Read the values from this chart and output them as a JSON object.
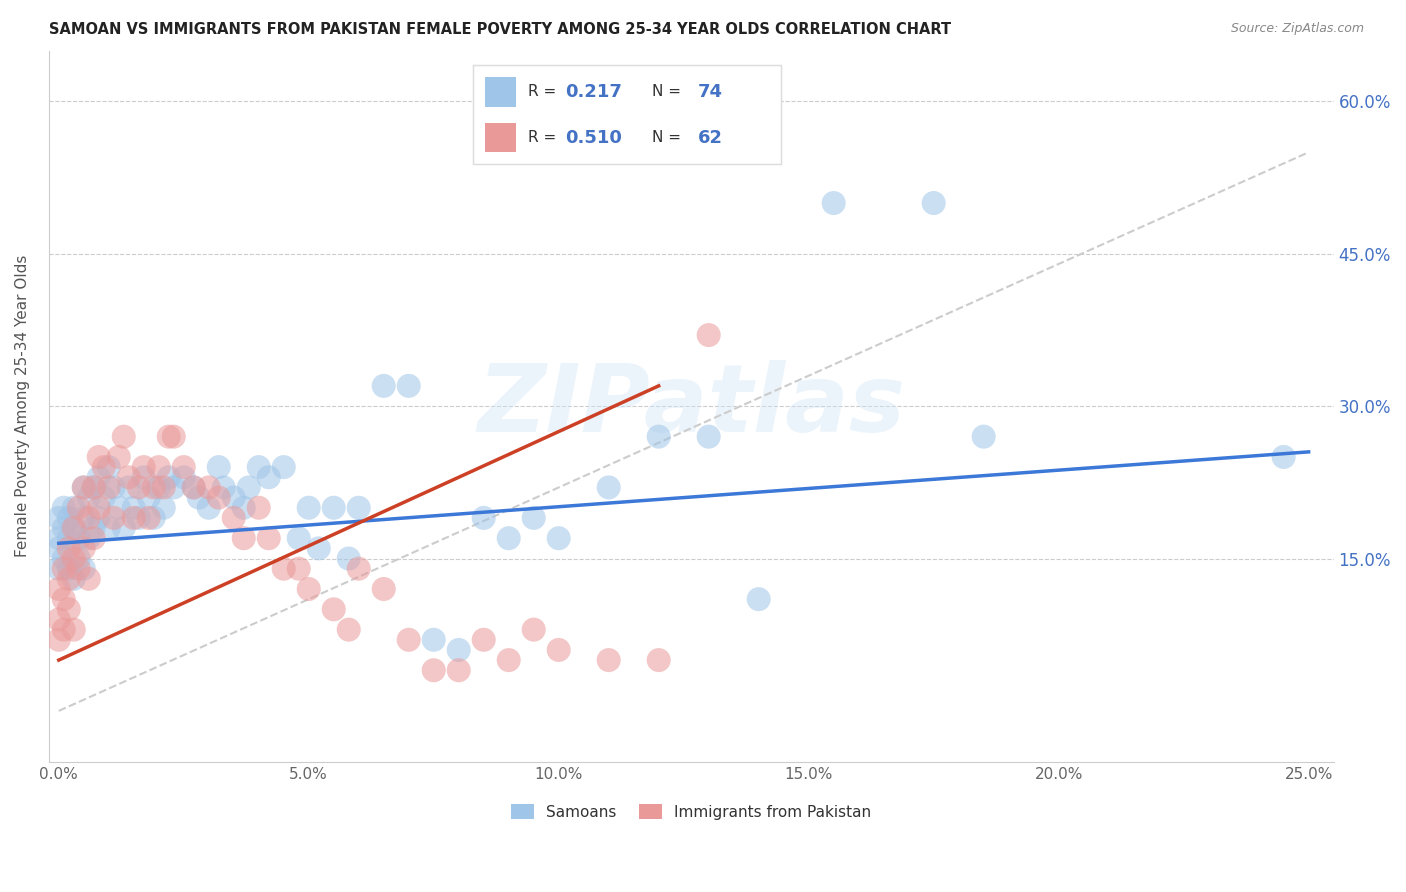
{
  "title": "SAMOAN VS IMMIGRANTS FROM PAKISTAN FEMALE POVERTY AMONG 25-34 YEAR OLDS CORRELATION CHART",
  "source": "Source: ZipAtlas.com",
  "xlabel_ticks": [
    "0.0%",
    "5.0%",
    "10.0%",
    "15.0%",
    "20.0%",
    "25.0%"
  ],
  "xlabel_vals": [
    0.0,
    0.05,
    0.1,
    0.15,
    0.2,
    0.25
  ],
  "ylabel_ticks": [
    "15.0%",
    "30.0%",
    "45.0%",
    "60.0%"
  ],
  "ylabel_vals": [
    0.15,
    0.3,
    0.45,
    0.6
  ],
  "ylabel_label": "Female Poverty Among 25-34 Year Olds",
  "xlim": [
    -0.002,
    0.255
  ],
  "ylim": [
    -0.05,
    0.65
  ],
  "R_blue": 0.217,
  "N_blue": 74,
  "R_pink": 0.51,
  "N_pink": 62,
  "color_blue": "#9fc5e8",
  "color_pink": "#ea9999",
  "color_blue_line": "#3c78d8",
  "color_pink_line": "#cc4125",
  "color_ref_line": "#cccccc",
  "legend1_label": "Samoans",
  "legend2_label": "Immigrants from Pakistan",
  "watermark": "ZIPatlas",
  "blue_line_x0": 0.0,
  "blue_line_y0": 0.165,
  "blue_line_x1": 0.25,
  "blue_line_y1": 0.255,
  "pink_line_x0": 0.0,
  "pink_line_y0": 0.05,
  "pink_line_x1": 0.12,
  "pink_line_y1": 0.32,
  "ref_line_x0": 0.0,
  "ref_line_y0": 0.0,
  "ref_line_x1": 0.25,
  "ref_line_y1": 0.55,
  "samoans_x": [
    0.0,
    0.0,
    0.0,
    0.0,
    0.001,
    0.001,
    0.001,
    0.002,
    0.002,
    0.002,
    0.003,
    0.003,
    0.003,
    0.004,
    0.004,
    0.005,
    0.005,
    0.005,
    0.006,
    0.006,
    0.007,
    0.007,
    0.008,
    0.008,
    0.009,
    0.01,
    0.01,
    0.011,
    0.012,
    0.013,
    0.014,
    0.015,
    0.016,
    0.017,
    0.018,
    0.019,
    0.02,
    0.021,
    0.022,
    0.023,
    0.025,
    0.027,
    0.028,
    0.03,
    0.032,
    0.033,
    0.035,
    0.037,
    0.038,
    0.04,
    0.042,
    0.045,
    0.048,
    0.05,
    0.052,
    0.055,
    0.058,
    0.06,
    0.065,
    0.07,
    0.075,
    0.08,
    0.085,
    0.09,
    0.095,
    0.1,
    0.11,
    0.12,
    0.13,
    0.14,
    0.155,
    0.175,
    0.185,
    0.245
  ],
  "samoans_y": [
    0.19,
    0.17,
    0.16,
    0.14,
    0.2,
    0.18,
    0.15,
    0.19,
    0.17,
    0.14,
    0.2,
    0.18,
    0.13,
    0.17,
    0.15,
    0.22,
    0.19,
    0.14,
    0.21,
    0.17,
    0.22,
    0.18,
    0.23,
    0.19,
    0.21,
    0.24,
    0.18,
    0.22,
    0.2,
    0.18,
    0.22,
    0.2,
    0.19,
    0.23,
    0.21,
    0.19,
    0.22,
    0.2,
    0.23,
    0.22,
    0.23,
    0.22,
    0.21,
    0.2,
    0.24,
    0.22,
    0.21,
    0.2,
    0.22,
    0.24,
    0.23,
    0.24,
    0.17,
    0.2,
    0.16,
    0.2,
    0.15,
    0.2,
    0.32,
    0.32,
    0.07,
    0.06,
    0.19,
    0.17,
    0.19,
    0.17,
    0.22,
    0.27,
    0.27,
    0.11,
    0.5,
    0.5,
    0.27,
    0.25
  ],
  "pakistan_x": [
    0.0,
    0.0,
    0.0,
    0.001,
    0.001,
    0.001,
    0.002,
    0.002,
    0.002,
    0.003,
    0.003,
    0.003,
    0.004,
    0.004,
    0.005,
    0.005,
    0.006,
    0.006,
    0.007,
    0.007,
    0.008,
    0.008,
    0.009,
    0.01,
    0.011,
    0.012,
    0.013,
    0.014,
    0.015,
    0.016,
    0.017,
    0.018,
    0.019,
    0.02,
    0.021,
    0.022,
    0.023,
    0.025,
    0.027,
    0.03,
    0.032,
    0.035,
    0.037,
    0.04,
    0.042,
    0.045,
    0.048,
    0.05,
    0.055,
    0.058,
    0.06,
    0.065,
    0.07,
    0.075,
    0.08,
    0.085,
    0.09,
    0.095,
    0.1,
    0.11,
    0.12,
    0.13
  ],
  "pakistan_y": [
    0.12,
    0.09,
    0.07,
    0.14,
    0.11,
    0.08,
    0.16,
    0.13,
    0.1,
    0.18,
    0.15,
    0.08,
    0.2,
    0.14,
    0.22,
    0.16,
    0.19,
    0.13,
    0.22,
    0.17,
    0.25,
    0.2,
    0.24,
    0.22,
    0.19,
    0.25,
    0.27,
    0.23,
    0.19,
    0.22,
    0.24,
    0.19,
    0.22,
    0.24,
    0.22,
    0.27,
    0.27,
    0.24,
    0.22,
    0.22,
    0.21,
    0.19,
    0.17,
    0.2,
    0.17,
    0.14,
    0.14,
    0.12,
    0.1,
    0.08,
    0.14,
    0.12,
    0.07,
    0.04,
    0.04,
    0.07,
    0.05,
    0.08,
    0.06,
    0.05,
    0.05,
    0.37
  ]
}
